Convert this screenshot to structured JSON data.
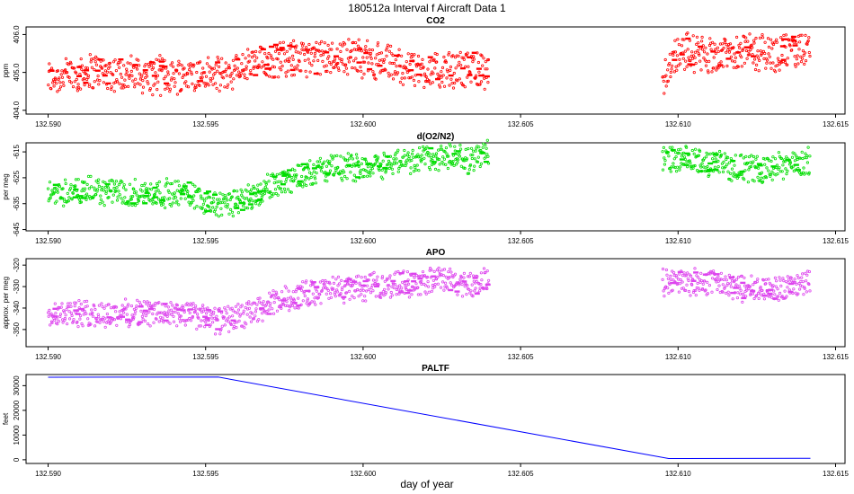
{
  "title": "180512a   Interval f Aircraft Data 1",
  "xlabel": "day of year",
  "x_ticks": [
    "132.590",
    "132.595",
    "132.600",
    "132.605",
    "132.610",
    "132.615"
  ],
  "chart_data": [
    {
      "type": "scatter",
      "title": "CO2",
      "ylabel": "ppm",
      "xlim": [
        132.5893,
        132.6153
      ],
      "ylim": [
        403.9,
        406.2
      ],
      "yticks": [
        404.0,
        405.0,
        406.0
      ],
      "ytick_labels": [
        "404.0",
        "405.0",
        "406.0"
      ],
      "color": "#ff0000",
      "x_ranges": [
        [
          132.59,
          132.604
        ],
        [
          132.6095,
          132.6142
        ]
      ],
      "segments": [
        {
          "x": 132.59,
          "y": 404.85
        },
        {
          "x": 132.5915,
          "y": 405.05
        },
        {
          "x": 132.593,
          "y": 404.9
        },
        {
          "x": 132.5945,
          "y": 404.95
        },
        {
          "x": 132.5955,
          "y": 404.9
        },
        {
          "x": 132.5965,
          "y": 405.2
        },
        {
          "x": 132.5975,
          "y": 405.4
        },
        {
          "x": 132.5985,
          "y": 405.35
        },
        {
          "x": 132.5995,
          "y": 405.45
        },
        {
          "x": 132.6005,
          "y": 405.3
        },
        {
          "x": 132.6015,
          "y": 405.1
        },
        {
          "x": 132.6025,
          "y": 405.0
        },
        {
          "x": 132.6035,
          "y": 405.15
        },
        {
          "x": 132.604,
          "y": 405.0
        },
        {
          "x": 132.6095,
          "y": 404.85
        },
        {
          "x": 132.61,
          "y": 405.6
        },
        {
          "x": 132.611,
          "y": 405.45
        },
        {
          "x": 132.612,
          "y": 405.6
        },
        {
          "x": 132.613,
          "y": 405.5
        },
        {
          "x": 132.6142,
          "y": 405.6
        }
      ],
      "spread": 0.55
    },
    {
      "type": "scatter",
      "title": "d(O2/N2)",
      "ylabel": "per meg",
      "xlim": [
        132.5893,
        132.6153
      ],
      "ylim": [
        -645.5,
        -611.5
      ],
      "yticks": [
        -645,
        -635,
        -625,
        -615
      ],
      "ytick_labels": [
        "-645",
        "-635",
        "-625",
        "-615"
      ],
      "color": "#00dd00",
      "x_ranges": [
        [
          132.59,
          132.604
        ],
        [
          132.6095,
          132.6142
        ]
      ],
      "segments": [
        {
          "x": 132.59,
          "y": -631
        },
        {
          "x": 132.5915,
          "y": -630
        },
        {
          "x": 132.593,
          "y": -631
        },
        {
          "x": 132.5945,
          "y": -631
        },
        {
          "x": 132.5955,
          "y": -636
        },
        {
          "x": 132.5965,
          "y": -632
        },
        {
          "x": 132.5975,
          "y": -626
        },
        {
          "x": 132.5985,
          "y": -622
        },
        {
          "x": 132.5995,
          "y": -621
        },
        {
          "x": 132.6005,
          "y": -620
        },
        {
          "x": 132.6015,
          "y": -618
        },
        {
          "x": 132.6025,
          "y": -617
        },
        {
          "x": 132.6035,
          "y": -618
        },
        {
          "x": 132.604,
          "y": -615
        },
        {
          "x": 132.6095,
          "y": -618
        },
        {
          "x": 132.611,
          "y": -619
        },
        {
          "x": 132.6125,
          "y": -622
        },
        {
          "x": 132.6135,
          "y": -620
        },
        {
          "x": 132.6142,
          "y": -619
        }
      ],
      "spread": 6
    },
    {
      "type": "scatter",
      "title": "APO",
      "ylabel": "approx. per meg",
      "xlim": [
        132.5893,
        132.6153
      ],
      "ylim": [
        -358,
        -317
      ],
      "yticks": [
        -350,
        -340,
        -330,
        -320
      ],
      "ytick_labels": [
        "-350",
        "-340",
        "-330",
        "-320"
      ],
      "color": "#dd44ee",
      "x_ranges": [
        [
          132.59,
          132.604
        ],
        [
          132.6095,
          132.6142
        ]
      ],
      "segments": [
        {
          "x": 132.59,
          "y": -342
        },
        {
          "x": 132.5915,
          "y": -343
        },
        {
          "x": 132.593,
          "y": -342
        },
        {
          "x": 132.5945,
          "y": -343
        },
        {
          "x": 132.5955,
          "y": -346
        },
        {
          "x": 132.5965,
          "y": -342
        },
        {
          "x": 132.5975,
          "y": -336
        },
        {
          "x": 132.5985,
          "y": -332
        },
        {
          "x": 132.5995,
          "y": -331
        },
        {
          "x": 132.6005,
          "y": -330
        },
        {
          "x": 132.6015,
          "y": -328
        },
        {
          "x": 132.6025,
          "y": -327
        },
        {
          "x": 132.6035,
          "y": -329
        },
        {
          "x": 132.604,
          "y": -327
        },
        {
          "x": 132.6095,
          "y": -328
        },
        {
          "x": 132.611,
          "y": -328
        },
        {
          "x": 132.6125,
          "y": -332
        },
        {
          "x": 132.6135,
          "y": -330
        },
        {
          "x": 132.6142,
          "y": -328
        }
      ],
      "spread": 7
    },
    {
      "type": "line",
      "title": "PALTF",
      "ylabel": "feet",
      "xlim": [
        132.5893,
        132.6153
      ],
      "ylim": [
        -1500,
        34500
      ],
      "yticks": [
        0,
        10000,
        20000,
        30000
      ],
      "ytick_labels": [
        "0",
        "10000",
        "20000",
        "30000"
      ],
      "color": "#0000ff",
      "x": [
        132.59,
        132.5954,
        132.6097,
        132.6142
      ],
      "y": [
        33400,
        33500,
        500,
        600
      ]
    }
  ]
}
